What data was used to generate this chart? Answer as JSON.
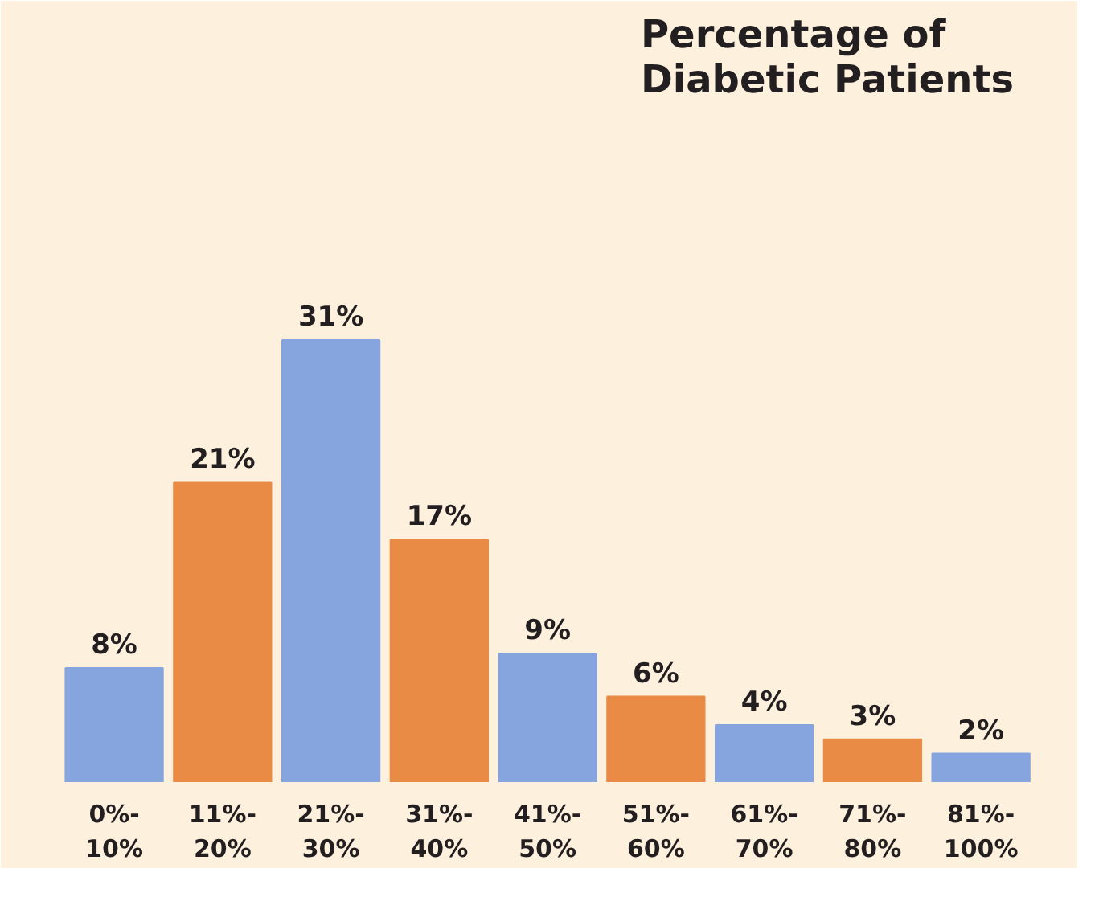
{
  "chart_data": {
    "type": "bar",
    "title": "Percentage of\nDiabetic Patients",
    "categories": [
      "0%-\n10%",
      "11%-\n20%",
      "21%-\n30%",
      "31%-\n40%",
      "41%-\n50%",
      "51%-\n60%",
      "61%-\n70%",
      "71%-\n80%",
      "81%-\n100%"
    ],
    "values": [
      8,
      21,
      31,
      17,
      9,
      6,
      4,
      3,
      2
    ],
    "value_labels": [
      "8%",
      "21%",
      "31%",
      "17%",
      "9%",
      "6%",
      "4%",
      "3%",
      "2%"
    ],
    "colors": [
      "#86a4de",
      "#e98a45",
      "#86a4de",
      "#e98a45",
      "#86a4de",
      "#e98a45",
      "#86a4de",
      "#e98a45",
      "#86a4de"
    ],
    "grid": false
  }
}
